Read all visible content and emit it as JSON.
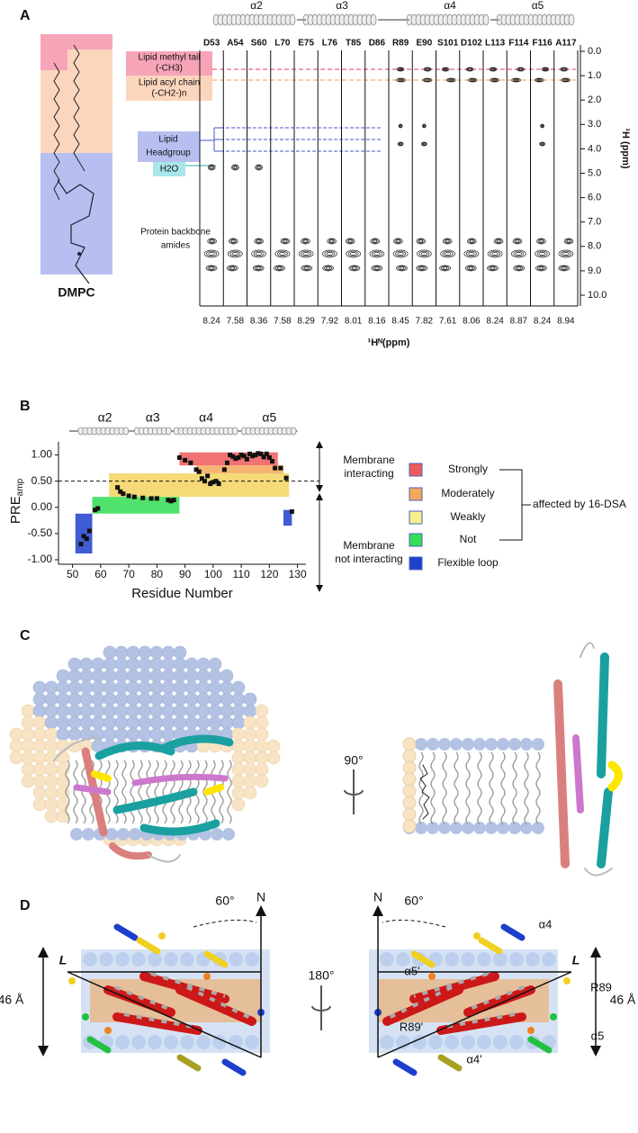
{
  "panel_a": {
    "label": "A",
    "helices": [
      "α2",
      "α3",
      "α4",
      "α5"
    ],
    "residues": [
      "D53",
      "A54",
      "S60",
      "L70",
      "E75",
      "L76",
      "T85",
      "D86",
      "R89",
      "E90",
      "S101",
      "D102",
      "L113",
      "F114",
      "F116",
      "A117"
    ],
    "shifts": [
      8.24,
      7.58,
      8.36,
      7.58,
      8.29,
      7.92,
      8.01,
      8.16,
      8.45,
      7.82,
      7.61,
      8.06,
      8.24,
      8.87,
      8.24,
      8.94
    ],
    "ylim": [
      0,
      10
    ],
    "yticks": [
      {
        "value": 0,
        "label": "0.0"
      },
      {
        "value": 1,
        "label": "1.0"
      },
      {
        "value": 2,
        "label": "2.0"
      },
      {
        "value": 3,
        "label": "3.0"
      },
      {
        "value": 4,
        "label": "4.0"
      },
      {
        "value": 5,
        "label": "5.0"
      },
      {
        "value": 6,
        "label": "6.0"
      },
      {
        "value": 7,
        "label": "7.0"
      },
      {
        "value": 8,
        "label": "8.0"
      },
      {
        "value": 9,
        "label": "9.0"
      },
      {
        "value": 10,
        "label": "10.0"
      }
    ],
    "ylabel": "¹H (ppm)",
    "xlabel": "¹Hᴺ(ppm)",
    "methyl_tail": [
      "Lipid methyl tail",
      "(-CH3)"
    ],
    "acyl_chain": [
      "Lipid acyl chain",
      "(-CH2-)n"
    ],
    "headgroup": [
      "Lipid",
      "Headgroup"
    ],
    "water": "H2O",
    "amides": [
      "Protein backbone",
      "amides"
    ],
    "molecule": "DMPC"
  },
  "chart_data": {
    "type": "scatter",
    "label": "B",
    "xlabel": "Residue Number",
    "ylabel": "PRE",
    "ylabel_sub": "amp",
    "color": "#111111",
    "x": [
      53,
      54,
      55,
      56,
      58,
      59,
      66,
      67,
      68,
      70,
      72,
      75,
      78,
      80,
      84,
      85,
      86,
      88,
      90,
      92,
      94,
      95,
      96,
      97,
      98,
      99,
      100,
      101,
      102,
      104,
      105,
      106,
      107,
      108,
      109,
      110,
      111,
      112,
      113,
      114,
      115,
      116,
      117,
      118,
      119,
      120,
      121,
      122,
      124,
      126,
      128
    ],
    "values": [
      -0.7,
      -0.55,
      -0.6,
      -0.45,
      -0.05,
      -0.02,
      0.38,
      0.3,
      0.26,
      0.22,
      0.2,
      0.18,
      0.17,
      0.17,
      0.14,
      0.12,
      0.14,
      0.95,
      0.9,
      0.85,
      0.72,
      0.68,
      0.55,
      0.5,
      0.6,
      0.45,
      0.48,
      0.5,
      0.45,
      0.72,
      0.85,
      1.0,
      0.97,
      0.93,
      0.95,
      1.0,
      0.98,
      0.92,
      1.02,
      0.98,
      1.0,
      1.03,
      1.02,
      0.96,
      1.02,
      0.95,
      0.88,
      0.75,
      0.75,
      0.56,
      -0.08
    ],
    "xlim": [
      45,
      133
    ],
    "ylim": [
      -1,
      1.25
    ],
    "xticks": [
      50,
      60,
      70,
      80,
      90,
      100,
      110,
      120,
      130
    ],
    "yticks": [
      {
        "value": 1,
        "label": "1.00"
      },
      {
        "value": 0.5,
        "label": "0.50"
      },
      {
        "value": 0,
        "label": "0.00"
      },
      {
        "value": -0.5,
        "label": "-0.50"
      },
      {
        "value": -1,
        "label": "-1.00"
      }
    ],
    "threshold": 0.5,
    "helices": [
      {
        "name": "α2",
        "range": [
          52,
          71
        ]
      },
      {
        "name": "α3",
        "range": [
          72,
          85
        ]
      },
      {
        "name": "α4",
        "range": [
          86,
          109
        ]
      },
      {
        "name": "α5",
        "range": [
          110,
          130
        ]
      }
    ],
    "regions": [
      {
        "color": "#f3d35f",
        "xlim": [
          63,
          127
        ],
        "ylim": [
          0.2,
          0.65
        ]
      },
      {
        "color": "#f5a85a",
        "xlim": [
          94,
          125
        ],
        "ylim": [
          0.65,
          0.8
        ]
      },
      {
        "color": "#ee5b5b",
        "xlim": [
          88,
          123
        ],
        "ylim": [
          0.8,
          1.05
        ]
      },
      {
        "color": "#33dd55",
        "xlim": [
          57,
          88
        ],
        "ylim": [
          -0.12,
          0.2
        ]
      },
      {
        "color": "#1f3fcc",
        "xlim": [
          51,
          57
        ],
        "ylim": [
          -0.88,
          -0.12
        ]
      },
      {
        "color": "#1f3fcc",
        "xlim": [
          125,
          128
        ],
        "ylim": [
          -0.35,
          -0.05
        ]
      }
    ],
    "legend": [
      {
        "name": "Strongly",
        "color": "#ee5b5b"
      },
      {
        "name": "Moderately",
        "color": "#f5a85a"
      },
      {
        "name": "Weakly",
        "color": "#f8f08a"
      },
      {
        "name": "Not",
        "color": "#33dd55"
      },
      {
        "name": "Flexible loop",
        "color": "#1f3fcc"
      }
    ],
    "interacting": [
      "Membrane",
      "interacting"
    ],
    "not_interacting": [
      "Membrane",
      "not interacting"
    ],
    "affected": "affected by 16-DSA"
  },
  "panel_c": {
    "label": "C",
    "rotation": "90°"
  },
  "panel_d": {
    "label": "D",
    "rotation": "180°",
    "left": {
      "angle": "60°",
      "normal": "N",
      "axis": "L",
      "thickness": "46 Å"
    },
    "right": {
      "angle": "60°",
      "normal": "N",
      "axis": "L",
      "thickness": "46 Å",
      "labels": [
        "α4",
        "α5'",
        "R89",
        "α5",
        "R89'",
        "α4'"
      ]
    }
  }
}
